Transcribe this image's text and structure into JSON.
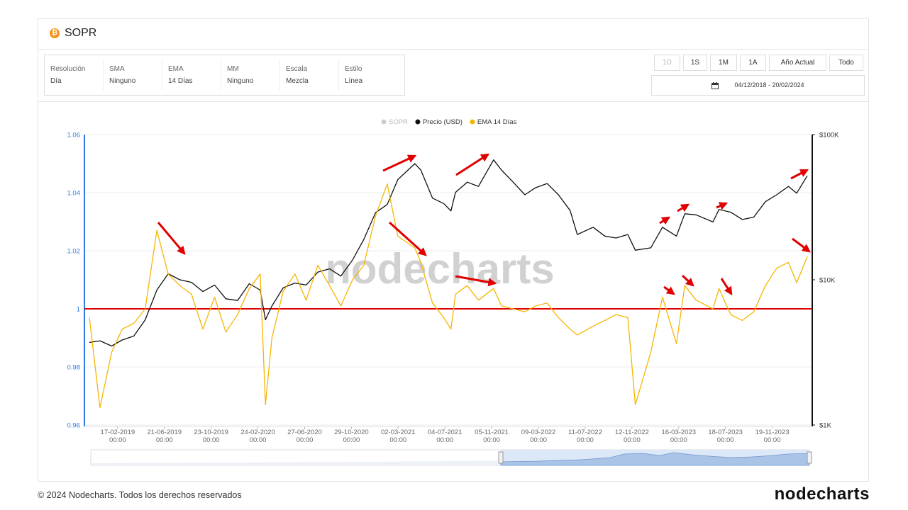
{
  "header": {
    "title": "SOPR"
  },
  "settings": [
    {
      "label": "Resolución",
      "value": "Día"
    },
    {
      "label": "SMA",
      "value": "Ninguno"
    },
    {
      "label": "EMA",
      "value": "14 Días"
    },
    {
      "label": "MM",
      "value": "Ninguno"
    },
    {
      "label": "Escala",
      "value": "Mezcla"
    },
    {
      "label": "Estilo",
      "value": "Línea"
    }
  ],
  "range_buttons": [
    {
      "label": "1D",
      "enabled": false
    },
    {
      "label": "1S",
      "enabled": true
    },
    {
      "label": "1M",
      "enabled": true
    },
    {
      "label": "1A",
      "enabled": true
    },
    {
      "label": "Año Actual",
      "enabled": true
    },
    {
      "label": "Todo",
      "enabled": true
    }
  ],
  "date_range": "04/12/2018 - 20/02/2024",
  "footer": {
    "copyright": "© 2024 Nodecharts. Todos los derechos reservados",
    "logo": "nodecharts"
  },
  "chart_data": {
    "type": "line",
    "watermark": "nodecharts",
    "legend": "top",
    "grid": true,
    "y_axis_color": "#2d7be5",
    "reference_line": {
      "value": 1,
      "color": "#e00000"
    },
    "x": [
      "04-12-2018",
      "01-01-2019",
      "01-02-2019",
      "01-03-2019",
      "01-04-2019",
      "01-05-2019",
      "01-06-2019",
      "01-07-2019",
      "01-08-2019",
      "01-09-2019",
      "01-10-2019",
      "01-11-2019",
      "01-12-2019",
      "01-01-2020",
      "01-02-2020",
      "01-03-2020",
      "15-03-2020",
      "01-04-2020",
      "01-05-2020",
      "01-06-2020",
      "01-07-2020",
      "01-08-2020",
      "01-09-2020",
      "01-10-2020",
      "01-11-2020",
      "01-12-2020",
      "01-01-2021",
      "01-02-2021",
      "01-03-2021",
      "15-04-2021",
      "01-05-2021",
      "01-06-2021",
      "01-07-2021",
      "20-07-2021",
      "01-08-2021",
      "01-09-2021",
      "01-10-2021",
      "10-11-2021",
      "01-12-2021",
      "01-01-2022",
      "01-02-2022",
      "01-03-2022",
      "01-04-2022",
      "01-05-2022",
      "01-06-2022",
      "20-06-2022",
      "01-08-2022",
      "01-09-2022",
      "01-10-2022",
      "01-11-2022",
      "21-11-2022",
      "01-01-2023",
      "01-02-2023",
      "10-03-2023",
      "01-04-2023",
      "01-05-2023",
      "15-06-2023",
      "01-07-2023",
      "01-08-2023",
      "01-09-2023",
      "01-10-2023",
      "01-11-2023",
      "01-12-2023",
      "01-01-2024",
      "23-01-2024",
      "20-02-2024"
    ],
    "series": [
      {
        "name": "SOPR",
        "color": "#cccccc",
        "hidden": true
      },
      {
        "name": "Precio (USD)",
        "color": "#111111",
        "axis": "y2",
        "values": [
          3700,
          3800,
          3500,
          3850,
          4100,
          5300,
          8500,
          11000,
          10000,
          9600,
          8300,
          9200,
          7400,
          7200,
          9400,
          8500,
          5300,
          6600,
          8800,
          9500,
          9200,
          11300,
          11900,
          10600,
          13700,
          19000,
          29000,
          33000,
          49000,
          63000,
          57000,
          36500,
          33500,
          29800,
          40000,
          47000,
          44000,
          67000,
          57000,
          47000,
          38500,
          43000,
          46000,
          38500,
          30000,
          20500,
          23000,
          20000,
          19400,
          20500,
          16000,
          16600,
          23000,
          20000,
          28500,
          28000,
          25000,
          30500,
          29200,
          26000,
          27000,
          34500,
          38500,
          44000,
          39500,
          52000
        ]
      },
      {
        "name": "EMA 14 Días",
        "color": "#f7b500",
        "values": [
          0.997,
          0.966,
          0.985,
          0.993,
          0.995,
          1.0,
          1.027,
          1.012,
          1.008,
          1.005,
          0.993,
          1.004,
          0.992,
          0.998,
          1.007,
          1.012,
          0.967,
          0.99,
          1.006,
          1.012,
          1.003,
          1.015,
          1.008,
          1.001,
          1.01,
          1.015,
          1.032,
          1.043,
          1.025,
          1.021,
          1.016,
          1.002,
          0.997,
          0.993,
          1.005,
          1.008,
          1.003,
          1.007,
          1.001,
          1.0,
          0.999,
          1.001,
          1.002,
          0.997,
          0.993,
          0.991,
          0.994,
          0.996,
          0.998,
          0.997,
          0.967,
          0.985,
          1.004,
          0.988,
          1.008,
          1.003,
          1.0,
          1.007,
          0.998,
          0.996,
          0.999,
          1.008,
          1.014,
          1.016,
          1.009,
          1.018
        ]
      }
    ],
    "xlim": [
      "04-12-2018",
      "20-02-2024"
    ],
    "xticks": [
      {
        "value": "17-02-2019",
        "label": "17-02-2019\n00:00"
      },
      {
        "value": "21-06-2019",
        "label": "21-06-2019\n00:00"
      },
      {
        "value": "23-10-2019",
        "label": "23-10-2019\n00:00"
      },
      {
        "value": "24-02-2020",
        "label": "24-02-2020\n00:00"
      },
      {
        "value": "27-06-2020",
        "label": "27-06-2020\n00:00"
      },
      {
        "value": "29-10-2020",
        "label": "29-10-2020\n00:00"
      },
      {
        "value": "02-03-2021",
        "label": "02-03-2021\n00:00"
      },
      {
        "value": "04-07-2021",
        "label": "04-07-2021\n00:00"
      },
      {
        "value": "05-11-2021",
        "label": "05-11-2021\n00:00"
      },
      {
        "value": "09-03-2022",
        "label": "09-03-2022\n00:00"
      },
      {
        "value": "11-07-2022",
        "label": "11-07-2022\n00:00"
      },
      {
        "value": "12-11-2022",
        "label": "12-11-2022\n00:00"
      },
      {
        "value": "16-03-2023",
        "label": "16-03-2023\n00:00"
      },
      {
        "value": "18-07-2023",
        "label": "18-07-2023\n00:00"
      },
      {
        "value": "19-11-2023",
        "label": "19-11-2023\n00:00"
      }
    ],
    "ylim": [
      0.96,
      1.06
    ],
    "yticks": [
      0.96,
      0.98,
      1,
      1.02,
      1.04,
      1.06
    ],
    "y2scale": "log",
    "y2lim": [
      1000,
      100000
    ],
    "y2ticks": [
      {
        "value": 1000,
        "label": "$1K"
      },
      {
        "value": 10000,
        "label": "$10K"
      },
      {
        "value": 100000,
        "label": "$100K"
      }
    ]
  }
}
